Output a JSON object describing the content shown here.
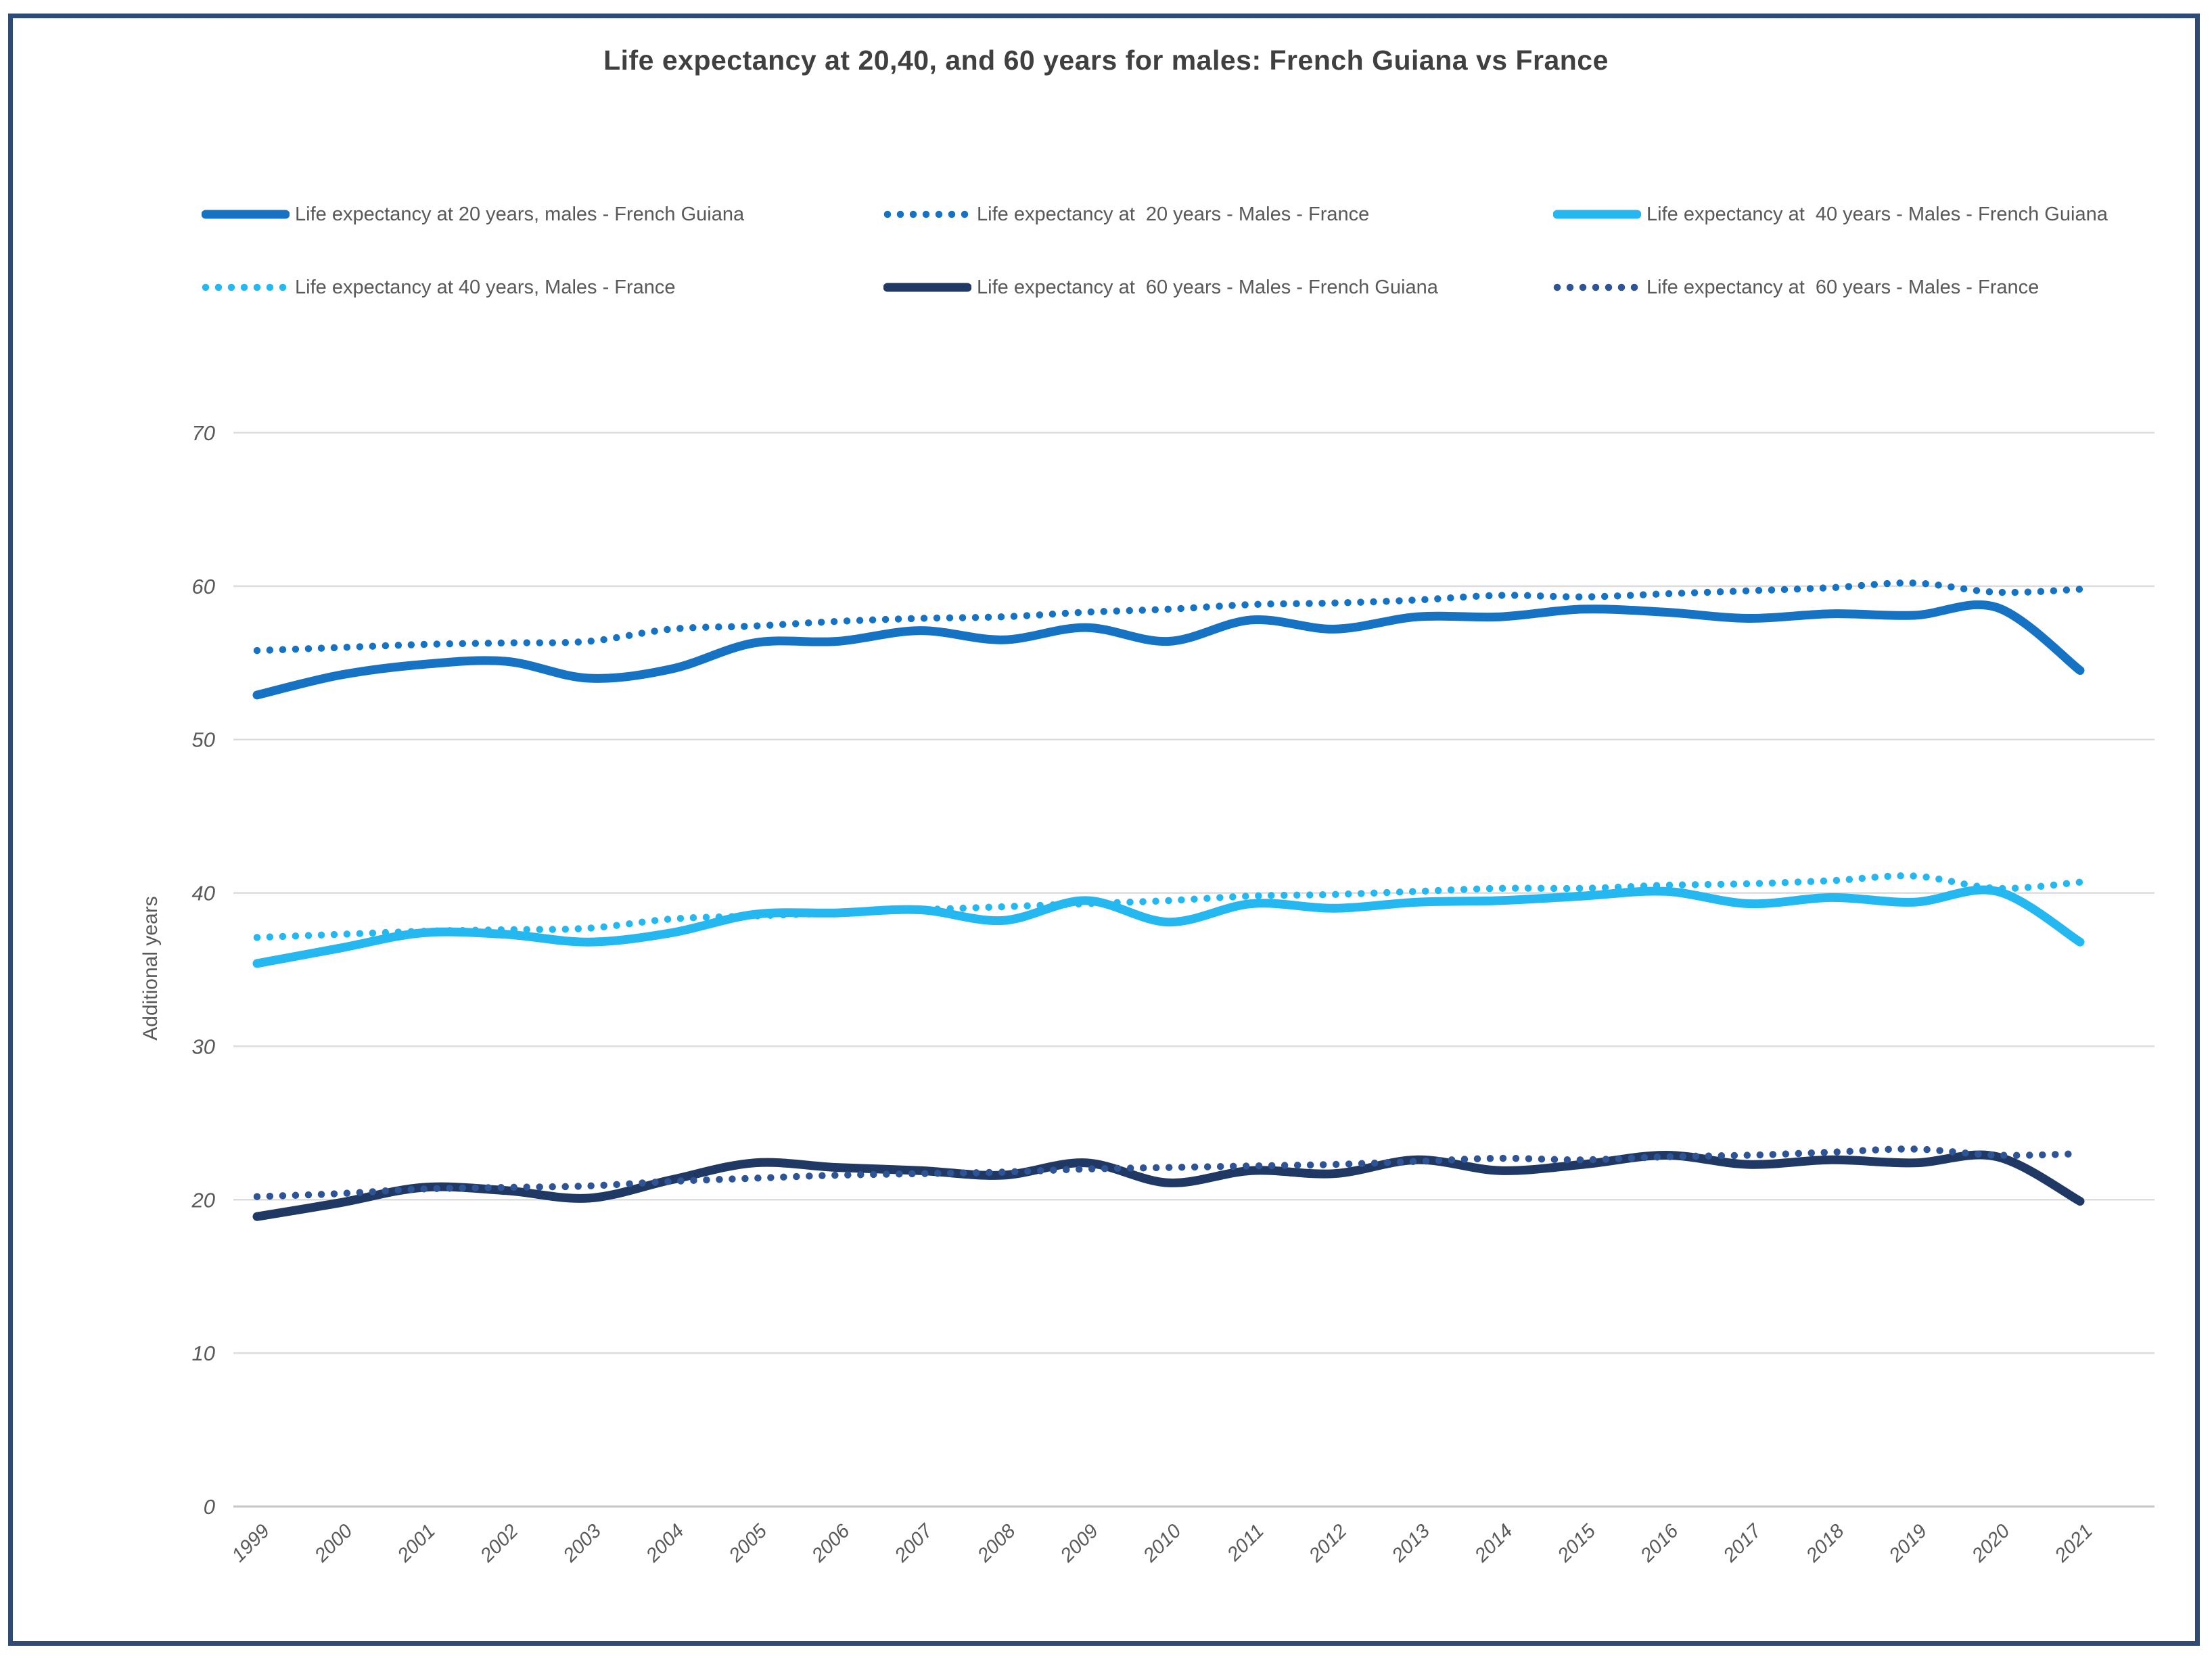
{
  "title": "Life expectancy at 20,40, and 60 years for males: French Guiana vs France",
  "y_axis_title": "Additional years",
  "chart_data": {
    "type": "line",
    "title": "Life expectancy at 20,40, and 60 years for males: French Guiana vs France",
    "xlabel": "",
    "ylabel": "Additional years",
    "ylim": [
      0,
      70
    ],
    "yticks": [
      0,
      10,
      20,
      30,
      40,
      50,
      60,
      70
    ],
    "grid": "horizontal",
    "legend_position": "top",
    "x": [
      1999,
      2000,
      2001,
      2002,
      2003,
      2004,
      2005,
      2006,
      2007,
      2008,
      2009,
      2010,
      2011,
      2012,
      2013,
      2014,
      2015,
      2016,
      2017,
      2018,
      2019,
      2020,
      2021
    ],
    "series": [
      {
        "name": "Life expectancy at 20 years, males - French Guiana",
        "style": "solid",
        "color": "#1673C4",
        "values": [
          52.9,
          54.2,
          54.9,
          55.1,
          54.0,
          54.6,
          56.3,
          56.4,
          57.1,
          56.5,
          57.3,
          56.4,
          57.8,
          57.2,
          58.0,
          58.0,
          58.5,
          58.3,
          57.9,
          58.2,
          58.1,
          58.6,
          54.5
        ]
      },
      {
        "name": "Life expectancy at  20 years - Males - France",
        "style": "dotted",
        "color": "#1673C4",
        "values": [
          55.8,
          56.0,
          56.2,
          56.3,
          56.4,
          57.2,
          57.4,
          57.7,
          57.9,
          58.0,
          58.3,
          58.5,
          58.8,
          58.9,
          59.1,
          59.4,
          59.3,
          59.5,
          59.7,
          59.9,
          60.2,
          59.6,
          59.8
        ]
      },
      {
        "name": "Life expectancy at  40 years - Males - French Guiana",
        "style": "solid",
        "color": "#25B8F0",
        "values": [
          35.4,
          36.4,
          37.4,
          37.3,
          36.8,
          37.4,
          38.6,
          38.7,
          38.9,
          38.2,
          39.5,
          38.1,
          39.3,
          39.0,
          39.4,
          39.5,
          39.8,
          40.1,
          39.3,
          39.7,
          39.4,
          40.1,
          36.8
        ]
      },
      {
        "name": "Life expectancy at 40 years, Males - France",
        "style": "dotted",
        "color": "#25B8F0",
        "values": [
          37.1,
          37.3,
          37.5,
          37.6,
          37.7,
          38.3,
          38.5,
          38.7,
          38.9,
          39.1,
          39.3,
          39.5,
          39.8,
          39.9,
          40.1,
          40.3,
          40.3,
          40.5,
          40.6,
          40.8,
          41.1,
          40.3,
          40.7
        ]
      },
      {
        "name": "Life expectancy at  60 years - Males - French Guiana",
        "style": "solid",
        "color": "#1F3864",
        "values": [
          18.9,
          19.8,
          20.8,
          20.6,
          20.1,
          21.3,
          22.4,
          22.1,
          21.9,
          21.6,
          22.4,
          21.1,
          21.9,
          21.7,
          22.6,
          21.9,
          22.3,
          22.9,
          22.3,
          22.6,
          22.4,
          22.8,
          19.9
        ]
      },
      {
        "name": "Life expectancy at  60 years - Males - France",
        "style": "dotted",
        "color": "#2F5496",
        "values": [
          20.2,
          20.4,
          20.7,
          20.8,
          20.9,
          21.2,
          21.4,
          21.6,
          21.7,
          21.8,
          22.0,
          22.1,
          22.2,
          22.3,
          22.5,
          22.7,
          22.6,
          22.8,
          22.9,
          23.1,
          23.3,
          22.9,
          23.0
        ]
      }
    ],
    "colors": {
      "blue": "#1673C4",
      "light_blue": "#25B8F0",
      "navy": "#1F3864",
      "navy_dotted": "#2F5496",
      "gridline": "#DCDCDC",
      "axis_line": "#C6C6C6",
      "text": "#595959",
      "title_text": "#404040",
      "frame_border": "#2E4A75"
    }
  }
}
